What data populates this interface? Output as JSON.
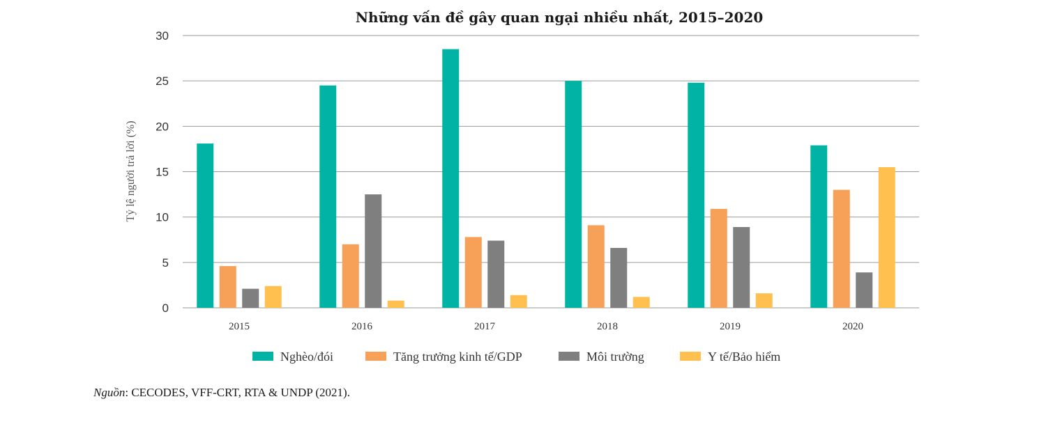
{
  "chart_data": {
    "type": "bar",
    "title": "Những vấn đề gây quan ngại nhiều nhất, 2015–2020",
    "ylabel": "Tỷ lệ người trả lời (%)",
    "xlabel": "",
    "ylim": [
      0,
      30
    ],
    "yticks": [
      0,
      5,
      10,
      15,
      20,
      25,
      30
    ],
    "grid": true,
    "legend_position": "bottom",
    "categories": [
      "2015",
      "2016",
      "2017",
      "2018",
      "2019",
      "2020"
    ],
    "series": [
      {
        "name": "Nghèo/đói",
        "color": "#00b3a4",
        "values": [
          18.1,
          24.5,
          28.5,
          25.0,
          24.8,
          17.9
        ]
      },
      {
        "name": "Tăng trưởng kinh tế/GDP",
        "color": "#f7a158",
        "values": [
          4.6,
          7.0,
          7.8,
          9.1,
          10.9,
          13.0
        ]
      },
      {
        "name": "Môi trường",
        "color": "#7f7f7f",
        "values": [
          2.1,
          12.5,
          7.4,
          6.6,
          8.9,
          3.9
        ]
      },
      {
        "name": "Y tế/Bảo hiểm",
        "color": "#ffc04f",
        "values": [
          2.4,
          0.8,
          1.4,
          1.2,
          1.6,
          15.5
        ]
      }
    ]
  },
  "source": {
    "label": "Nguồn",
    "text": ": CECODES, VFF-CRT, RTA & UNDP (2021)."
  }
}
